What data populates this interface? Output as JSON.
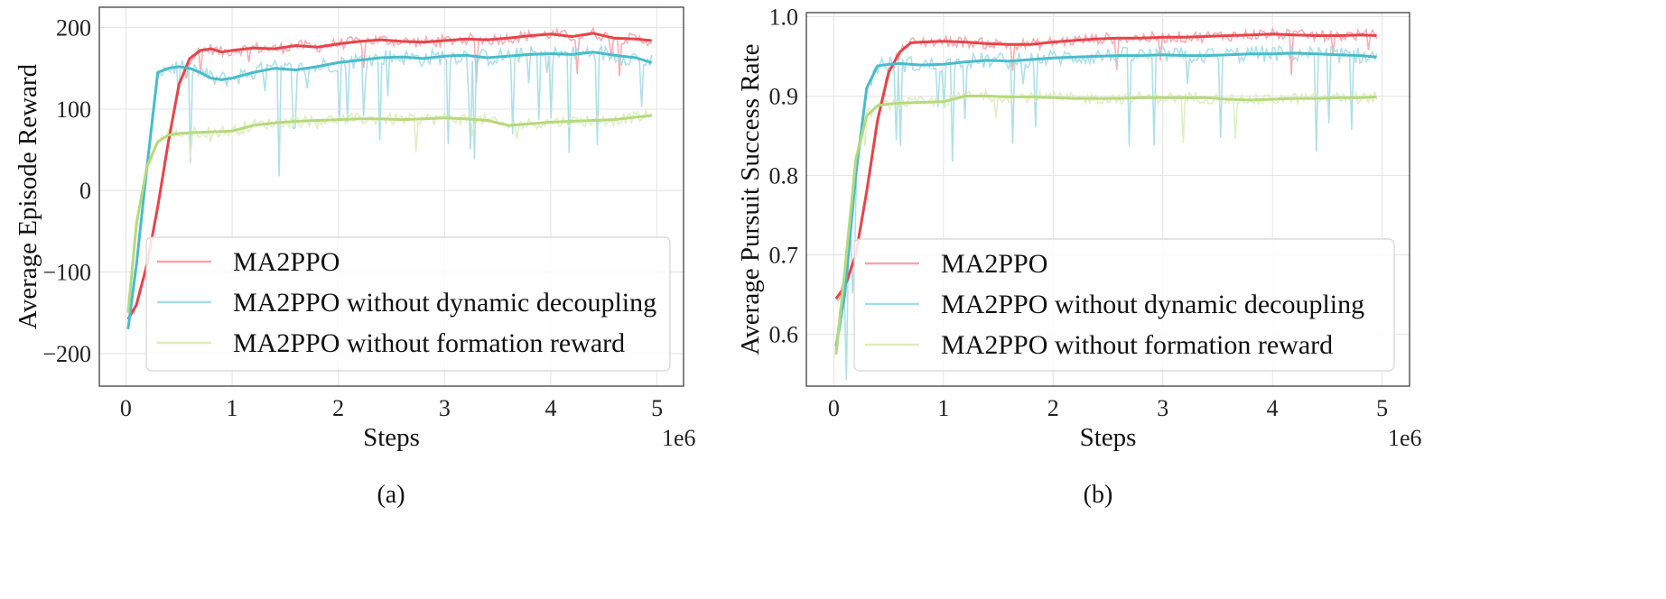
{
  "chart_data": [
    {
      "type": "line",
      "caption": "(a)",
      "xlabel": "Steps",
      "ylabel": "Average Episode Reward",
      "x_scale_label": "1e6",
      "xlim": [
        -0.25,
        5.25
      ],
      "ylim": [
        -240,
        225
      ],
      "xticks": [
        0,
        1,
        2,
        3,
        4,
        5
      ],
      "xtick_labels": [
        "0",
        "1",
        "2",
        "3",
        "4",
        "5"
      ],
      "yticks": [
        -200,
        -100,
        0,
        100,
        200
      ],
      "ytick_labels": [
        "−200",
        "−100",
        "0",
        "100",
        "200"
      ],
      "grid": true,
      "legend_position": "lower-right",
      "series": [
        {
          "name": "MA2PPO",
          "color": "#e8434a",
          "raw_color": "#f4a6ad",
          "x": [
            0.02,
            0.1,
            0.2,
            0.3,
            0.4,
            0.5,
            0.6,
            0.7,
            0.8,
            0.9,
            1.0,
            1.2,
            1.4,
            1.6,
            1.8,
            2.0,
            2.2,
            2.4,
            2.6,
            2.8,
            3.0,
            3.2,
            3.4,
            3.6,
            3.8,
            4.0,
            4.2,
            4.4,
            4.6,
            4.8,
            4.95
          ],
          "values": [
            -158,
            -140,
            -90,
            -20,
            60,
            130,
            162,
            172,
            174,
            170,
            172,
            175,
            174,
            178,
            176,
            180,
            183,
            185,
            183,
            182,
            184,
            186,
            185,
            187,
            190,
            192,
            189,
            193,
            187,
            186,
            184
          ]
        },
        {
          "name": "MA2PPO without dynamic decoupling",
          "color": "#48bccb",
          "raw_color": "#a6dde6",
          "x": [
            0.02,
            0.1,
            0.2,
            0.3,
            0.4,
            0.5,
            0.6,
            0.7,
            0.8,
            0.9,
            1.0,
            1.2,
            1.4,
            1.6,
            1.8,
            2.0,
            2.2,
            2.4,
            2.6,
            2.8,
            3.0,
            3.2,
            3.4,
            3.6,
            3.8,
            4.0,
            4.2,
            4.4,
            4.6,
            4.8,
            4.95
          ],
          "values": [
            -170,
            -90,
            30,
            145,
            150,
            152,
            150,
            145,
            138,
            136,
            138,
            145,
            150,
            148,
            152,
            157,
            160,
            163,
            164,
            162,
            165,
            166,
            163,
            165,
            167,
            168,
            167,
            170,
            166,
            163,
            157
          ]
        },
        {
          "name": "MA2PPO without formation reward",
          "color": "#b6d97d",
          "raw_color": "#dbedbd",
          "x": [
            0.02,
            0.1,
            0.2,
            0.3,
            0.4,
            0.5,
            0.6,
            0.8,
            1.0,
            1.2,
            1.4,
            1.6,
            1.8,
            2.0,
            2.2,
            2.4,
            2.6,
            2.8,
            3.0,
            3.2,
            3.4,
            3.6,
            3.8,
            4.0,
            4.2,
            4.4,
            4.6,
            4.8,
            4.95
          ],
          "values": [
            -150,
            -40,
            30,
            60,
            68,
            70,
            71,
            72,
            73,
            80,
            83,
            85,
            86,
            87,
            88,
            88,
            87,
            88,
            89,
            88,
            86,
            80,
            82,
            84,
            85,
            86,
            87,
            90,
            92
          ]
        }
      ]
    },
    {
      "type": "line",
      "caption": "(b)",
      "xlabel": "Steps",
      "ylabel": "Average Pursuit Success Rate",
      "x_scale_label": "1e6",
      "xlim": [
        -0.25,
        5.25
      ],
      "ylim": [
        0.535,
        1.005
      ],
      "xticks": [
        0,
        1,
        2,
        3,
        4,
        5
      ],
      "xtick_labels": [
        "0",
        "1",
        "2",
        "3",
        "4",
        "5"
      ],
      "yticks": [
        0.6,
        0.7,
        0.8,
        0.9,
        1.0
      ],
      "ytick_labels": [
        "0.6",
        "0.7",
        "0.8",
        "0.9",
        "1.0"
      ],
      "grid": true,
      "legend_position": "lower-right",
      "series": [
        {
          "name": "MA2PPO",
          "color": "#e8434a",
          "raw_color": "#f4a6ad",
          "x": [
            0.02,
            0.1,
            0.2,
            0.3,
            0.4,
            0.5,
            0.6,
            0.7,
            0.8,
            1.0,
            1.2,
            1.4,
            1.6,
            1.8,
            2.0,
            2.2,
            2.4,
            2.6,
            2.8,
            3.0,
            3.2,
            3.4,
            3.6,
            3.8,
            4.0,
            4.2,
            4.4,
            4.6,
            4.8,
            4.95
          ],
          "values": [
            0.645,
            0.66,
            0.7,
            0.78,
            0.87,
            0.93,
            0.955,
            0.967,
            0.968,
            0.969,
            0.968,
            0.966,
            0.965,
            0.965,
            0.968,
            0.97,
            0.972,
            0.973,
            0.973,
            0.974,
            0.974,
            0.975,
            0.976,
            0.977,
            0.978,
            0.977,
            0.976,
            0.976,
            0.977,
            0.976
          ]
        },
        {
          "name": "MA2PPO without dynamic decoupling",
          "color": "#48bccb",
          "raw_color": "#a6dde6",
          "x": [
            0.02,
            0.1,
            0.2,
            0.3,
            0.4,
            0.5,
            0.6,
            0.8,
            1.0,
            1.2,
            1.4,
            1.6,
            1.8,
            2.0,
            2.2,
            2.4,
            2.6,
            2.8,
            3.0,
            3.2,
            3.4,
            3.6,
            3.8,
            4.0,
            4.2,
            4.4,
            4.6,
            4.8,
            4.95
          ],
          "values": [
            0.585,
            0.65,
            0.8,
            0.91,
            0.938,
            0.94,
            0.941,
            0.939,
            0.94,
            0.943,
            0.945,
            0.944,
            0.946,
            0.948,
            0.949,
            0.95,
            0.951,
            0.951,
            0.952,
            0.951,
            0.951,
            0.952,
            0.953,
            0.953,
            0.954,
            0.953,
            0.952,
            0.951,
            0.949
          ]
        },
        {
          "name": "MA2PPO without formation reward",
          "color": "#b6d97d",
          "raw_color": "#dbedbd",
          "x": [
            0.02,
            0.1,
            0.2,
            0.3,
            0.4,
            0.5,
            0.6,
            0.8,
            1.0,
            1.2,
            1.4,
            1.6,
            1.8,
            2.0,
            2.2,
            2.4,
            2.6,
            2.8,
            3.0,
            3.2,
            3.4,
            3.6,
            3.8,
            4.0,
            4.2,
            4.4,
            4.6,
            4.8,
            4.95
          ],
          "values": [
            0.575,
            0.68,
            0.82,
            0.875,
            0.888,
            0.89,
            0.891,
            0.892,
            0.893,
            0.9,
            0.9,
            0.899,
            0.899,
            0.898,
            0.897,
            0.897,
            0.897,
            0.898,
            0.898,
            0.898,
            0.898,
            0.896,
            0.895,
            0.896,
            0.897,
            0.897,
            0.898,
            0.898,
            0.899
          ]
        }
      ]
    }
  ]
}
